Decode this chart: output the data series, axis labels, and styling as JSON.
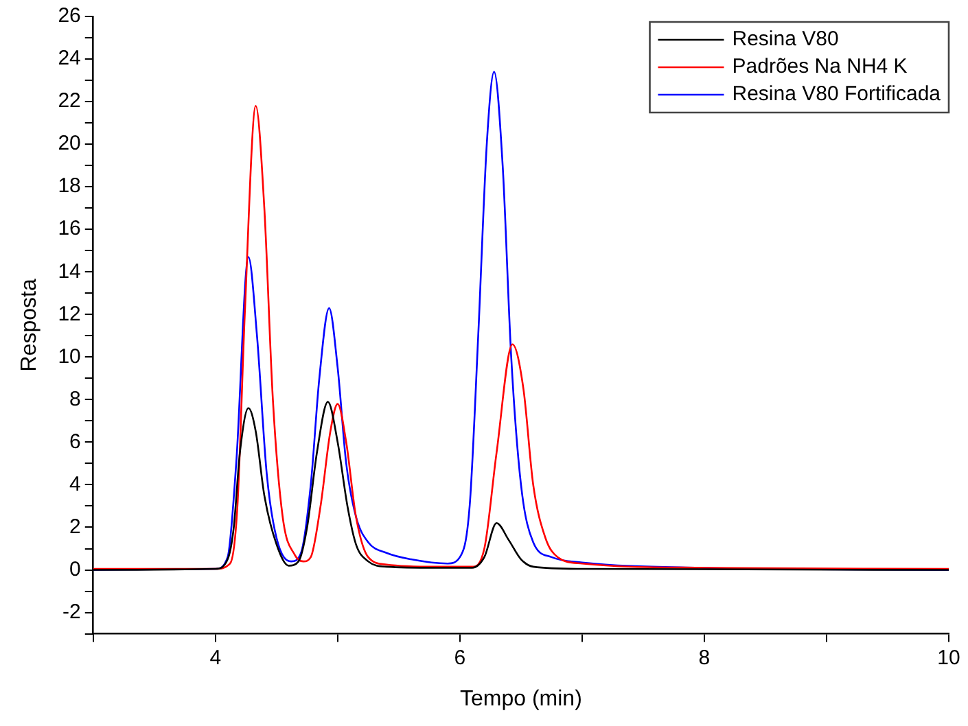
{
  "chart_data": {
    "type": "line",
    "xlabel": "Tempo (min)",
    "ylabel": "Resposta",
    "xlim": [
      3,
      10
    ],
    "ylim": [
      -3,
      26
    ],
    "xticks": [
      {
        "value": 3,
        "label": null
      },
      4,
      {
        "value": 5,
        "label": null
      },
      6,
      {
        "value": 7,
        "label": null
      },
      8,
      {
        "value": 9,
        "label": null
      },
      10
    ],
    "yticks": [
      {
        "value": -3,
        "label": null
      },
      -2,
      {
        "value": -1,
        "label": null
      },
      0,
      {
        "value": 1,
        "label": null
      },
      2,
      {
        "value": 3,
        "label": null
      },
      4,
      {
        "value": 5,
        "label": null
      },
      6,
      {
        "value": 7,
        "label": null
      },
      8,
      {
        "value": 9,
        "label": null
      },
      10,
      {
        "value": 11,
        "label": null
      },
      12,
      {
        "value": 13,
        "label": null
      },
      14,
      {
        "value": 15,
        "label": null
      },
      16,
      {
        "value": 17,
        "label": null
      },
      18,
      {
        "value": 19,
        "label": null
      },
      20,
      {
        "value": 21,
        "label": null
      },
      22,
      {
        "value": 23,
        "label": null
      },
      24,
      {
        "value": 25,
        "label": null
      },
      26
    ],
    "grid": false,
    "legend": "top right",
    "marker": "none",
    "line_style": "solid",
    "series": [
      {
        "name": "Resina V80",
        "color": "#000000",
        "x": [
          3,
          4.0,
          4.1,
          4.15,
          4.2,
          4.27,
          4.33,
          4.4,
          4.5,
          4.6,
          4.68,
          4.75,
          4.83,
          4.92,
          5.0,
          5.08,
          5.15,
          5.25,
          5.4,
          5.8,
          6.1,
          6.2,
          6.3,
          6.4,
          6.5,
          6.6,
          7.0,
          10
        ],
        "values": [
          0,
          0.05,
          0.5,
          2,
          5.5,
          7.6,
          6.5,
          3.5,
          1.2,
          0.2,
          0.4,
          2,
          5.5,
          7.9,
          6.0,
          3,
          1.2,
          0.4,
          0.15,
          0.1,
          0.1,
          0.6,
          2.2,
          1.4,
          0.5,
          0.15,
          0.05,
          0
        ]
      },
      {
        "name": "Padrões Na NH4 K",
        "color": "#ff0000",
        "x": [
          3,
          4.0,
          4.12,
          4.18,
          4.24,
          4.33,
          4.4,
          4.47,
          4.55,
          4.65,
          4.72,
          4.78,
          4.86,
          4.94,
          5.0,
          5.07,
          5.15,
          5.25,
          5.4,
          5.8,
          6.1,
          6.2,
          6.3,
          6.43,
          6.52,
          6.6,
          6.7,
          6.8,
          7.0,
          8,
          10
        ],
        "values": [
          0.05,
          0.05,
          0.3,
          3,
          12,
          21.8,
          17,
          8,
          2.5,
          0.7,
          0.4,
          0.6,
          3,
          6.5,
          7.8,
          6,
          2.5,
          0.6,
          0.25,
          0.15,
          0.15,
          1,
          5.5,
          10.6,
          8.5,
          4,
          1.5,
          0.6,
          0.3,
          0.1,
          0.05
        ]
      },
      {
        "name": "Resina V80 Fortificada",
        "color": "#0000ff",
        "x": [
          3,
          4.0,
          4.1,
          4.17,
          4.27,
          4.34,
          4.42,
          4.5,
          4.62,
          4.7,
          4.78,
          4.85,
          4.93,
          5.0,
          5.07,
          5.15,
          5.25,
          5.4,
          5.6,
          5.9,
          6.0,
          6.08,
          6.15,
          6.22,
          6.28,
          6.35,
          6.42,
          6.5,
          6.6,
          6.75,
          7.0,
          8,
          10
        ],
        "values": [
          0,
          0.05,
          0.6,
          5,
          14.7,
          11,
          4.5,
          1.5,
          0.4,
          0.8,
          4,
          9,
          12.3,
          9.5,
          5,
          2.5,
          1.3,
          0.8,
          0.5,
          0.3,
          0.6,
          3,
          11,
          20,
          23.4,
          19,
          10,
          4,
          1.3,
          0.6,
          0.35,
          0.1,
          0
        ]
      }
    ]
  }
}
